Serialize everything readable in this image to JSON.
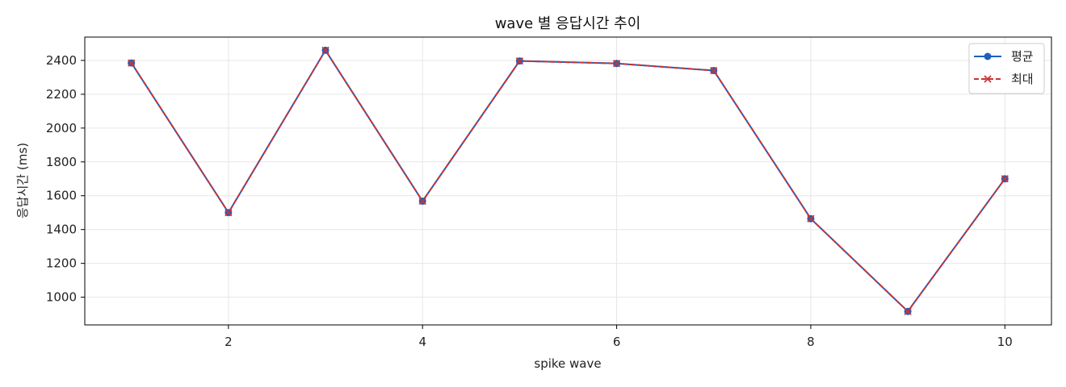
{
  "chart_data": {
    "type": "line",
    "title": "wave 별 응답시간 추이",
    "xlabel": "spike wave",
    "ylabel": "응답시간 (ms)",
    "x": [
      1,
      2,
      3,
      4,
      5,
      6,
      7,
      8,
      9,
      10
    ],
    "xticks": [
      2,
      4,
      6,
      8,
      10
    ],
    "yticks": [
      1000,
      1200,
      1400,
      1600,
      1800,
      2000,
      2200,
      2400
    ],
    "xlim": [
      0.52,
      10.48
    ],
    "ylim": [
      836,
      2538
    ],
    "grid": true,
    "legend_position": "top-right",
    "series": [
      {
        "name": "평균",
        "color": "#1f5fbf",
        "marker": "circle",
        "line_style": "solid",
        "values": [
          2385,
          1500,
          2460,
          1568,
          2397,
          2382,
          2340,
          1464,
          916,
          1700
        ]
      },
      {
        "name": "최대",
        "color": "#cc3333",
        "marker": "x",
        "line_style": "dashed",
        "values": [
          2385,
          1500,
          2460,
          1568,
          2397,
          2382,
          2340,
          1464,
          916,
          1700
        ]
      }
    ]
  }
}
